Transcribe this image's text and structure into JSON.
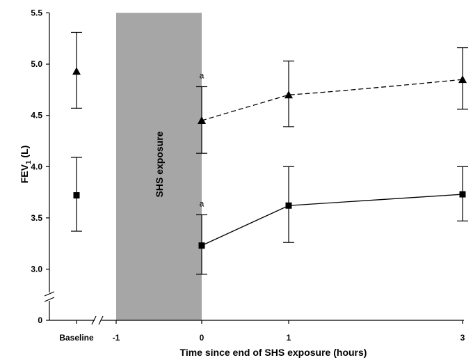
{
  "chart_data": {
    "type": "line",
    "xlabel": "Time since end of SHS exposure (hours)",
    "ylabel": "FEV₁ (L)",
    "ylabel_main": "FEV",
    "ylabel_sub": "1",
    "ylabel_unit": " (L)",
    "ylim": [
      0,
      5.5
    ],
    "y_axis_break": "between 0 and 3.0",
    "y_ticks": [
      "0",
      "3.0",
      "3.5",
      "4.0",
      "4.5",
      "5.0",
      "5.5"
    ],
    "y_tick_values": [
      0,
      3.0,
      3.5,
      4.0,
      4.5,
      5.0,
      5.5
    ],
    "x_ticks": [
      "Baseline",
      "-1",
      "0",
      "1",
      "3"
    ],
    "x_tick_values": [
      "baseline",
      -1,
      0,
      1,
      3
    ],
    "x_axis_break": "between Baseline and -1",
    "shaded_region": {
      "from": -1,
      "to": 0,
      "label": "SHS exposure",
      "color": "#a6a6a6"
    },
    "grid": false,
    "legend": "none",
    "series": [
      {
        "marker": "triangle",
        "line_style": "dashed",
        "points": [
          {
            "x": "baseline",
            "y": 4.93,
            "err_low": 4.57,
            "err_high": 5.31
          },
          {
            "x": 0,
            "y": 4.45,
            "err_low": 4.13,
            "err_high": 4.78,
            "annotation": "a"
          },
          {
            "x": 1,
            "y": 4.7,
            "err_low": 4.39,
            "err_high": 5.03
          },
          {
            "x": 3,
            "y": 4.85,
            "err_low": 4.56,
            "err_high": 5.16
          }
        ]
      },
      {
        "marker": "square",
        "line_style": "solid",
        "points": [
          {
            "x": "baseline",
            "y": 3.72,
            "err_low": 3.37,
            "err_high": 4.09
          },
          {
            "x": 0,
            "y": 3.23,
            "err_low": 2.95,
            "err_high": 3.53,
            "annotation": "a"
          },
          {
            "x": 1,
            "y": 3.62,
            "err_low": 3.26,
            "err_high": 4.0
          },
          {
            "x": 3,
            "y": 3.73,
            "err_low": 3.47,
            "err_high": 4.0
          }
        ]
      }
    ]
  }
}
